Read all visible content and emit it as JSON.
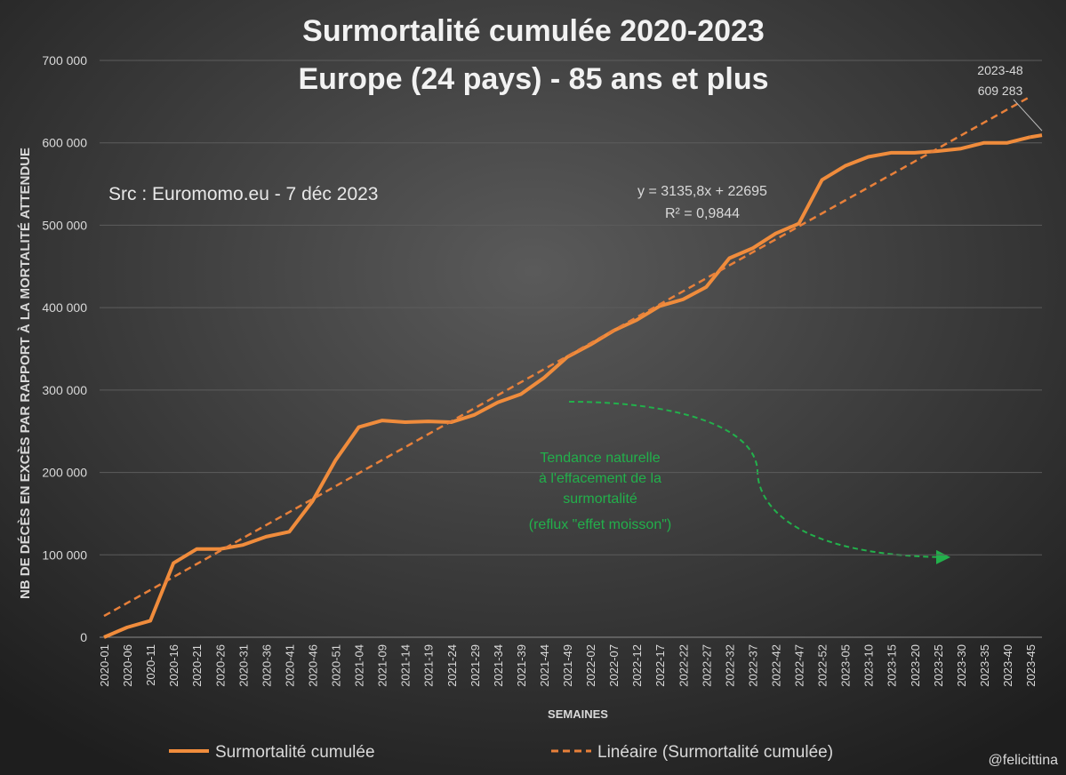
{
  "chart_data": {
    "type": "line",
    "title": [
      "Surmortalité cumulée 2020-2023",
      "Europe (24 pays) - 85 ans et plus"
    ],
    "y_label": "NB DE DÉCÈS EN EXCÈS PAR RAPPORT À LA MORTALITÉ ATTENDUE",
    "x_label": "SEMAINES",
    "source": "Src : Euromomo.eu  - 7 déc 2023",
    "equation": [
      "y = 3135,8x + 22695",
      "R² = 0,9844"
    ],
    "note": [
      "Tendance naturelle",
      "à l'effacement de la",
      "surmortalité",
      "(reflux \"effet moisson\")"
    ],
    "credit": "@felicittina",
    "end_label": {
      "x": "2023-48",
      "value": 609283,
      "value_label": "609 283"
    },
    "categories": [
      "2020-01",
      "2020-06",
      "2020-11",
      "2020-16",
      "2020-21",
      "2020-26",
      "2020-31",
      "2020-36",
      "2020-41",
      "2020-46",
      "2020-51",
      "2021-04",
      "2021-09",
      "2021-14",
      "2021-19",
      "2021-24",
      "2021-29",
      "2021-34",
      "2021-39",
      "2021-44",
      "2021-49",
      "2022-02",
      "2022-07",
      "2022-12",
      "2022-17",
      "2022-22",
      "2022-27",
      "2022-32",
      "2022-37",
      "2022-42",
      "2022-47",
      "2022-52",
      "2023-05",
      "2023-10",
      "2023-15",
      "2023-20",
      "2023-25",
      "2023-30",
      "2023-35",
      "2023-40",
      "2023-45"
    ],
    "series": [
      {
        "name": "Surmortalité cumulée",
        "color": "#f08c3c",
        "dash": false,
        "values": [
          0,
          12000,
          20000,
          90000,
          107000,
          107000,
          112000,
          122000,
          128000,
          165000,
          215000,
          255000,
          263000,
          261000,
          262000,
          261000,
          270000,
          285000,
          295000,
          315000,
          340000,
          355000,
          372000,
          385000,
          402000,
          410000,
          425000,
          460000,
          472000,
          490000,
          502000,
          555000,
          572000,
          583000,
          588000,
          588000,
          590000,
          593000,
          600000,
          600000,
          607000
        ]
      },
      {
        "name": "Linéaire (Surmortalité cumulée)",
        "color": "#e8803a",
        "dash": true,
        "values": [
          25800,
          41560,
          57320,
          73080,
          88840,
          104600,
          120360,
          136120,
          151880,
          167640,
          183400,
          199160,
          214920,
          230680,
          246440,
          262200,
          277960,
          293720,
          309480,
          325240,
          341000,
          356760,
          372520,
          388280,
          404040,
          419800,
          435560,
          451320,
          467080,
          482840,
          498600,
          514360,
          530120,
          545880,
          561640,
          577400,
          593160,
          608920,
          624680,
          640440,
          656200
        ]
      }
    ],
    "ylim": [
      0,
      700000
    ],
    "yticks": [
      {
        "value": 0,
        "label": "0"
      },
      {
        "value": 100000,
        "label": "100 000"
      },
      {
        "value": 200000,
        "label": "200 000"
      },
      {
        "value": 300000,
        "label": "300 000"
      },
      {
        "value": 400000,
        "label": "400 000"
      },
      {
        "value": 500000,
        "label": "500 000"
      },
      {
        "value": 600000,
        "label": "600 000"
      },
      {
        "value": 700000,
        "label": "700 000"
      }
    ],
    "grid": true
  }
}
